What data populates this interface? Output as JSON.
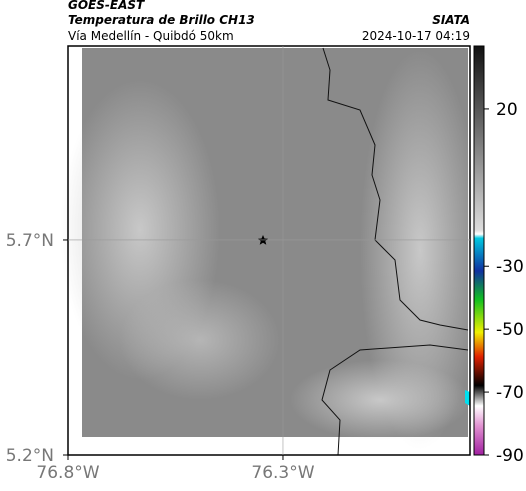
{
  "header": {
    "title": "GOES-EAST",
    "subtitle": "Temperatura de Brillo CH13",
    "region": "Vía Medellín - Quibdó 50km",
    "source": "SIATA",
    "timestamp": "2024-10-17 04:19"
  },
  "map": {
    "xlim": [
      -76.8,
      -75.865
    ],
    "ylim": [
      5.2,
      6.151
    ],
    "xticks": [
      {
        "value": -76.8,
        "label": "76.8°W"
      },
      {
        "value": -76.3,
        "label": "76.3°W"
      }
    ],
    "yticks": [
      {
        "value": 5.7,
        "label": "5.7°N"
      },
      {
        "value": 5.2,
        "label": "5.2°N"
      }
    ]
  },
  "colorbar": {
    "lim": [
      40,
      -90
    ],
    "ticks": [
      20,
      -30,
      -50,
      -70,
      -90
    ]
  }
}
